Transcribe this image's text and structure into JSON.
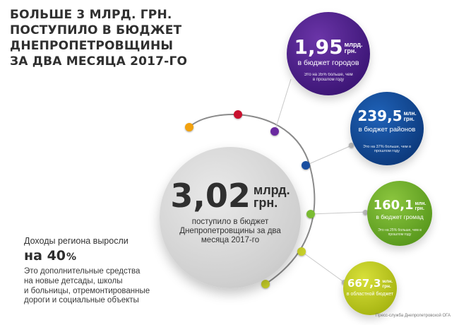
{
  "title": {
    "lines": [
      "БОЛЬШЕ 3 МЛРД. ГРН.",
      "ПОСТУПИЛО В БЮДЖЕТ",
      "ДНЕПРОПЕТРОВЩИНЫ",
      "ЗА ДВА МЕСЯЦА 2017-ГО"
    ]
  },
  "main": {
    "value": "3,02",
    "unit_line1": "млрд.",
    "unit_line2": "грн.",
    "label": "поступило в бюджет Днепропетровщины за два месяца 2017-го"
  },
  "bubbles": {
    "cities": {
      "value": "1,95",
      "unit_line1": "млрд.",
      "unit_line2": "грн.",
      "label": "в бюджет городов",
      "note": "Это на 35% больше, чем в прошлом году",
      "color": "#4b1f88"
    },
    "districts": {
      "value": "239,5",
      "unit_line1": "млн.",
      "unit_line2": "грн.",
      "label": "в бюджет районов",
      "note": "Это на 37% больше, чем в прошлом году",
      "color": "#144a98"
    },
    "hromad": {
      "value": "160,1",
      "unit_line1": "млн.",
      "unit_line2": "грн.",
      "label": "в бюджет громад",
      "note": "Это на 25% больше, чем в прошлом году",
      "color": "#6fae2a"
    },
    "oblast": {
      "value": "667,3",
      "unit_line1": "млн.",
      "unit_line2": "грн.",
      "label": "в областной бюджет",
      "color": "#bec826"
    }
  },
  "growth": {
    "intro": "Доходы региона выросли",
    "value_prefix": "на 40",
    "value_suffix": "%",
    "description": "Это дополнительные средства\nна новые детсады, школы\nи больницы, отремонтированные\nдороги и социальные объекты"
  },
  "credit": "Пресс-служба Днепропетровской ОГА",
  "colors": {
    "orange": "#f2a20f",
    "red": "#c8102e",
    "purple": "#6a2aa0",
    "blue": "#1a4fa0",
    "green": "#7bbd33",
    "yellow_green": "#c9d12a",
    "arc": "#8a8a8a"
  }
}
